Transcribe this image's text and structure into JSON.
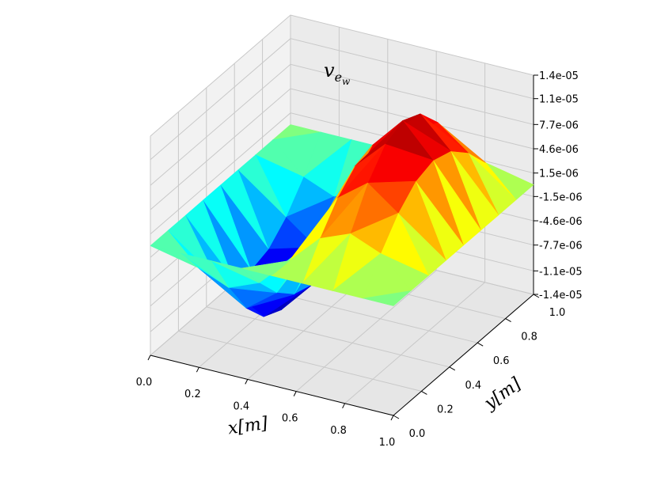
{
  "chart_data": {
    "type": "surface",
    "title": "v",
    "title_subscript": "e",
    "title_subsubscript": "w",
    "xlabel": "x[m]",
    "ylabel": "y[m]",
    "xlim": [
      0.0,
      1.0
    ],
    "ylim": [
      0.0,
      1.0
    ],
    "zlim": [
      -1.4e-05,
      1.4e-05
    ],
    "x_ticks": [
      "0.0",
      "0.2",
      "0.4",
      "0.6",
      "0.8",
      "1.0"
    ],
    "y_ticks": [
      "0.0",
      "0.2",
      "0.4",
      "0.6",
      "0.8",
      "1.0"
    ],
    "z_ticks": [
      "-1.4e-05",
      "-1.1e-05",
      "-7.7e-06",
      "-4.6e-06",
      "-1.5e-06",
      "1.5e-06",
      "4.6e-06",
      "7.7e-06",
      "1.1e-05",
      "1.4e-05"
    ],
    "grid": true,
    "colormap": "jet",
    "surface_form": "z = A * sin(2*pi*x) * sin(pi*y)",
    "amplitude": -1.4e-05,
    "mesh_divisions": 8
  }
}
